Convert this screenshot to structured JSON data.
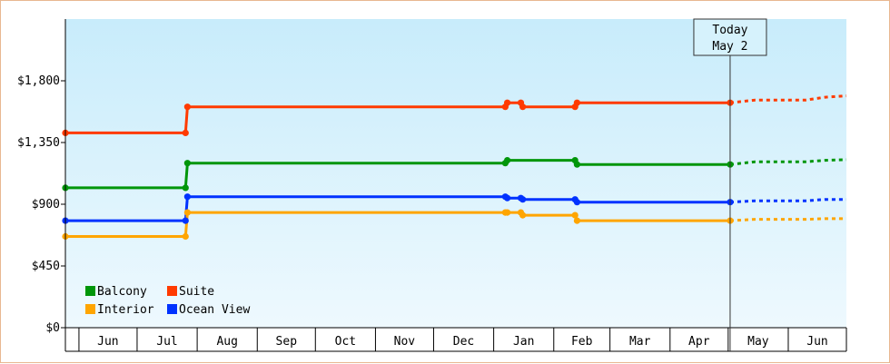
{
  "chart_data": {
    "type": "line",
    "title": "",
    "xlabel": "",
    "ylabel": "",
    "x_range": [
      "2023-05-25",
      "2024-07-01"
    ],
    "ylim": [
      0,
      2250
    ],
    "y_ticks": [
      0,
      450,
      900,
      1350,
      1800
    ],
    "y_tick_labels": [
      "$0",
      "$450",
      "$900",
      "$1,350",
      "$1,800"
    ],
    "month_labels": [
      "Jun",
      "Jul",
      "Aug",
      "Sep",
      "Oct",
      "Nov",
      "Dec",
      "Jan",
      "Feb",
      "Mar",
      "Apr",
      "May",
      "Jun"
    ],
    "month_starts": [
      "2023-06-01",
      "2023-07-01",
      "2023-08-01",
      "2023-09-01",
      "2023-10-01",
      "2023-11-01",
      "2023-12-01",
      "2024-01-01",
      "2024-02-01",
      "2024-03-01",
      "2024-04-01",
      "2024-05-01",
      "2024-06-01",
      "2024-07-01"
    ],
    "today": {
      "line1": "Today",
      "line2": "May 2",
      "date": "2024-05-02"
    },
    "legend": {
      "position": "bottom-left"
    },
    "series": [
      {
        "name": "Suite",
        "color": "#ff3a00",
        "points": [
          {
            "x": "2023-05-25",
            "y": 1420
          },
          {
            "x": "2023-07-26",
            "y": 1420
          },
          {
            "x": "2023-07-27",
            "y": 1610
          },
          {
            "x": "2024-01-07",
            "y": 1610
          },
          {
            "x": "2024-01-08",
            "y": 1640
          },
          {
            "x": "2024-01-15",
            "y": 1640
          },
          {
            "x": "2024-01-16",
            "y": 1610
          },
          {
            "x": "2024-02-12",
            "y": 1610
          },
          {
            "x": "2024-02-13",
            "y": 1640
          },
          {
            "x": "2024-05-02",
            "y": 1640
          }
        ],
        "forecast": [
          {
            "x": "2024-05-02",
            "y": 1640
          },
          {
            "x": "2024-05-15",
            "y": 1660
          },
          {
            "x": "2024-06-10",
            "y": 1660
          },
          {
            "x": "2024-06-20",
            "y": 1680
          },
          {
            "x": "2024-07-01",
            "y": 1690
          }
        ]
      },
      {
        "name": "Balcony",
        "color": "#00960a",
        "points": [
          {
            "x": "2023-05-25",
            "y": 1020
          },
          {
            "x": "2023-07-26",
            "y": 1020
          },
          {
            "x": "2023-07-27",
            "y": 1200
          },
          {
            "x": "2024-01-07",
            "y": 1200
          },
          {
            "x": "2024-01-08",
            "y": 1220
          },
          {
            "x": "2024-02-12",
            "y": 1220
          },
          {
            "x": "2024-02-13",
            "y": 1190
          },
          {
            "x": "2024-05-02",
            "y": 1190
          }
        ],
        "forecast": [
          {
            "x": "2024-05-02",
            "y": 1190
          },
          {
            "x": "2024-05-15",
            "y": 1210
          },
          {
            "x": "2024-06-10",
            "y": 1210
          },
          {
            "x": "2024-06-20",
            "y": 1220
          },
          {
            "x": "2024-07-01",
            "y": 1225
          }
        ]
      },
      {
        "name": "Ocean View",
        "color": "#0032ff",
        "points": [
          {
            "x": "2023-05-25",
            "y": 780
          },
          {
            "x": "2023-07-26",
            "y": 780
          },
          {
            "x": "2023-07-27",
            "y": 955
          },
          {
            "x": "2024-01-07",
            "y": 955
          },
          {
            "x": "2024-01-08",
            "y": 945
          },
          {
            "x": "2024-01-15",
            "y": 945
          },
          {
            "x": "2024-01-16",
            "y": 935
          },
          {
            "x": "2024-02-12",
            "y": 935
          },
          {
            "x": "2024-02-13",
            "y": 915
          },
          {
            "x": "2024-05-02",
            "y": 915
          }
        ],
        "forecast": [
          {
            "x": "2024-05-02",
            "y": 915
          },
          {
            "x": "2024-05-15",
            "y": 925
          },
          {
            "x": "2024-06-10",
            "y": 925
          },
          {
            "x": "2024-06-20",
            "y": 935
          },
          {
            "x": "2024-07-01",
            "y": 935
          }
        ]
      },
      {
        "name": "Interior",
        "color": "#ffa500",
        "points": [
          {
            "x": "2023-05-25",
            "y": 665
          },
          {
            "x": "2023-07-26",
            "y": 665
          },
          {
            "x": "2023-07-27",
            "y": 840
          },
          {
            "x": "2024-01-07",
            "y": 840
          },
          {
            "x": "2024-01-08",
            "y": 840
          },
          {
            "x": "2024-01-15",
            "y": 840
          },
          {
            "x": "2024-01-16",
            "y": 820
          },
          {
            "x": "2024-02-12",
            "y": 820
          },
          {
            "x": "2024-02-13",
            "y": 780
          },
          {
            "x": "2024-05-02",
            "y": 780
          }
        ],
        "forecast": [
          {
            "x": "2024-05-02",
            "y": 780
          },
          {
            "x": "2024-05-15",
            "y": 790
          },
          {
            "x": "2024-06-10",
            "y": 790
          },
          {
            "x": "2024-06-20",
            "y": 795
          },
          {
            "x": "2024-07-01",
            "y": 795
          }
        ]
      }
    ],
    "legend_entries": [
      {
        "name": "Balcony",
        "color": "#00960a"
      },
      {
        "name": "Suite",
        "color": "#ff3a00"
      },
      {
        "name": "Interior",
        "color": "#ffa500"
      },
      {
        "name": "Ocean View",
        "color": "#0032ff"
      }
    ]
  }
}
